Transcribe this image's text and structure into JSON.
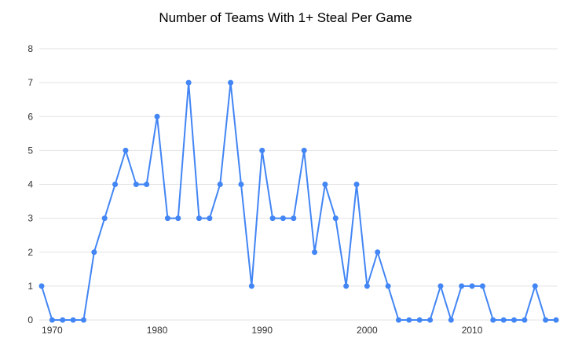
{
  "chart_data": {
    "type": "line",
    "title": "Number of Teams With 1+ Steal Per Game",
    "x": [
      1969,
      1970,
      1971,
      1972,
      1973,
      1974,
      1975,
      1976,
      1977,
      1978,
      1979,
      1980,
      1981,
      1982,
      1983,
      1984,
      1985,
      1986,
      1987,
      1988,
      1989,
      1990,
      1991,
      1992,
      1993,
      1994,
      1995,
      1996,
      1997,
      1998,
      1999,
      2000,
      2001,
      2002,
      2003,
      2004,
      2005,
      2006,
      2007,
      2008,
      2009,
      2010,
      2011,
      2012,
      2013,
      2014,
      2015,
      2016,
      2017,
      2018
    ],
    "values": [
      1,
      0,
      0,
      0,
      0,
      2,
      3,
      4,
      5,
      4,
      4,
      6,
      3,
      3,
      7,
      3,
      3,
      4,
      7,
      4,
      1,
      5,
      3,
      3,
      3,
      5,
      2,
      4,
      3,
      1,
      4,
      1,
      2,
      1,
      0,
      0,
      0,
      0,
      1,
      0,
      1,
      1,
      1,
      0,
      0,
      0,
      0,
      1,
      0,
      0
    ],
    "xlabel": "",
    "ylabel": "",
    "ylim": [
      0,
      8
    ],
    "y_ticks": [
      0,
      1,
      2,
      3,
      4,
      5,
      6,
      7,
      8
    ],
    "x_tick_labels": [
      1970,
      1980,
      1990,
      2000,
      2010
    ],
    "grid": "horizontal",
    "legend": "none",
    "line_color": "#4285f4",
    "point_color": "#4285f4",
    "grid_color": "#e3e3e3",
    "axis_color": "#333333",
    "background": "#ffffff"
  }
}
